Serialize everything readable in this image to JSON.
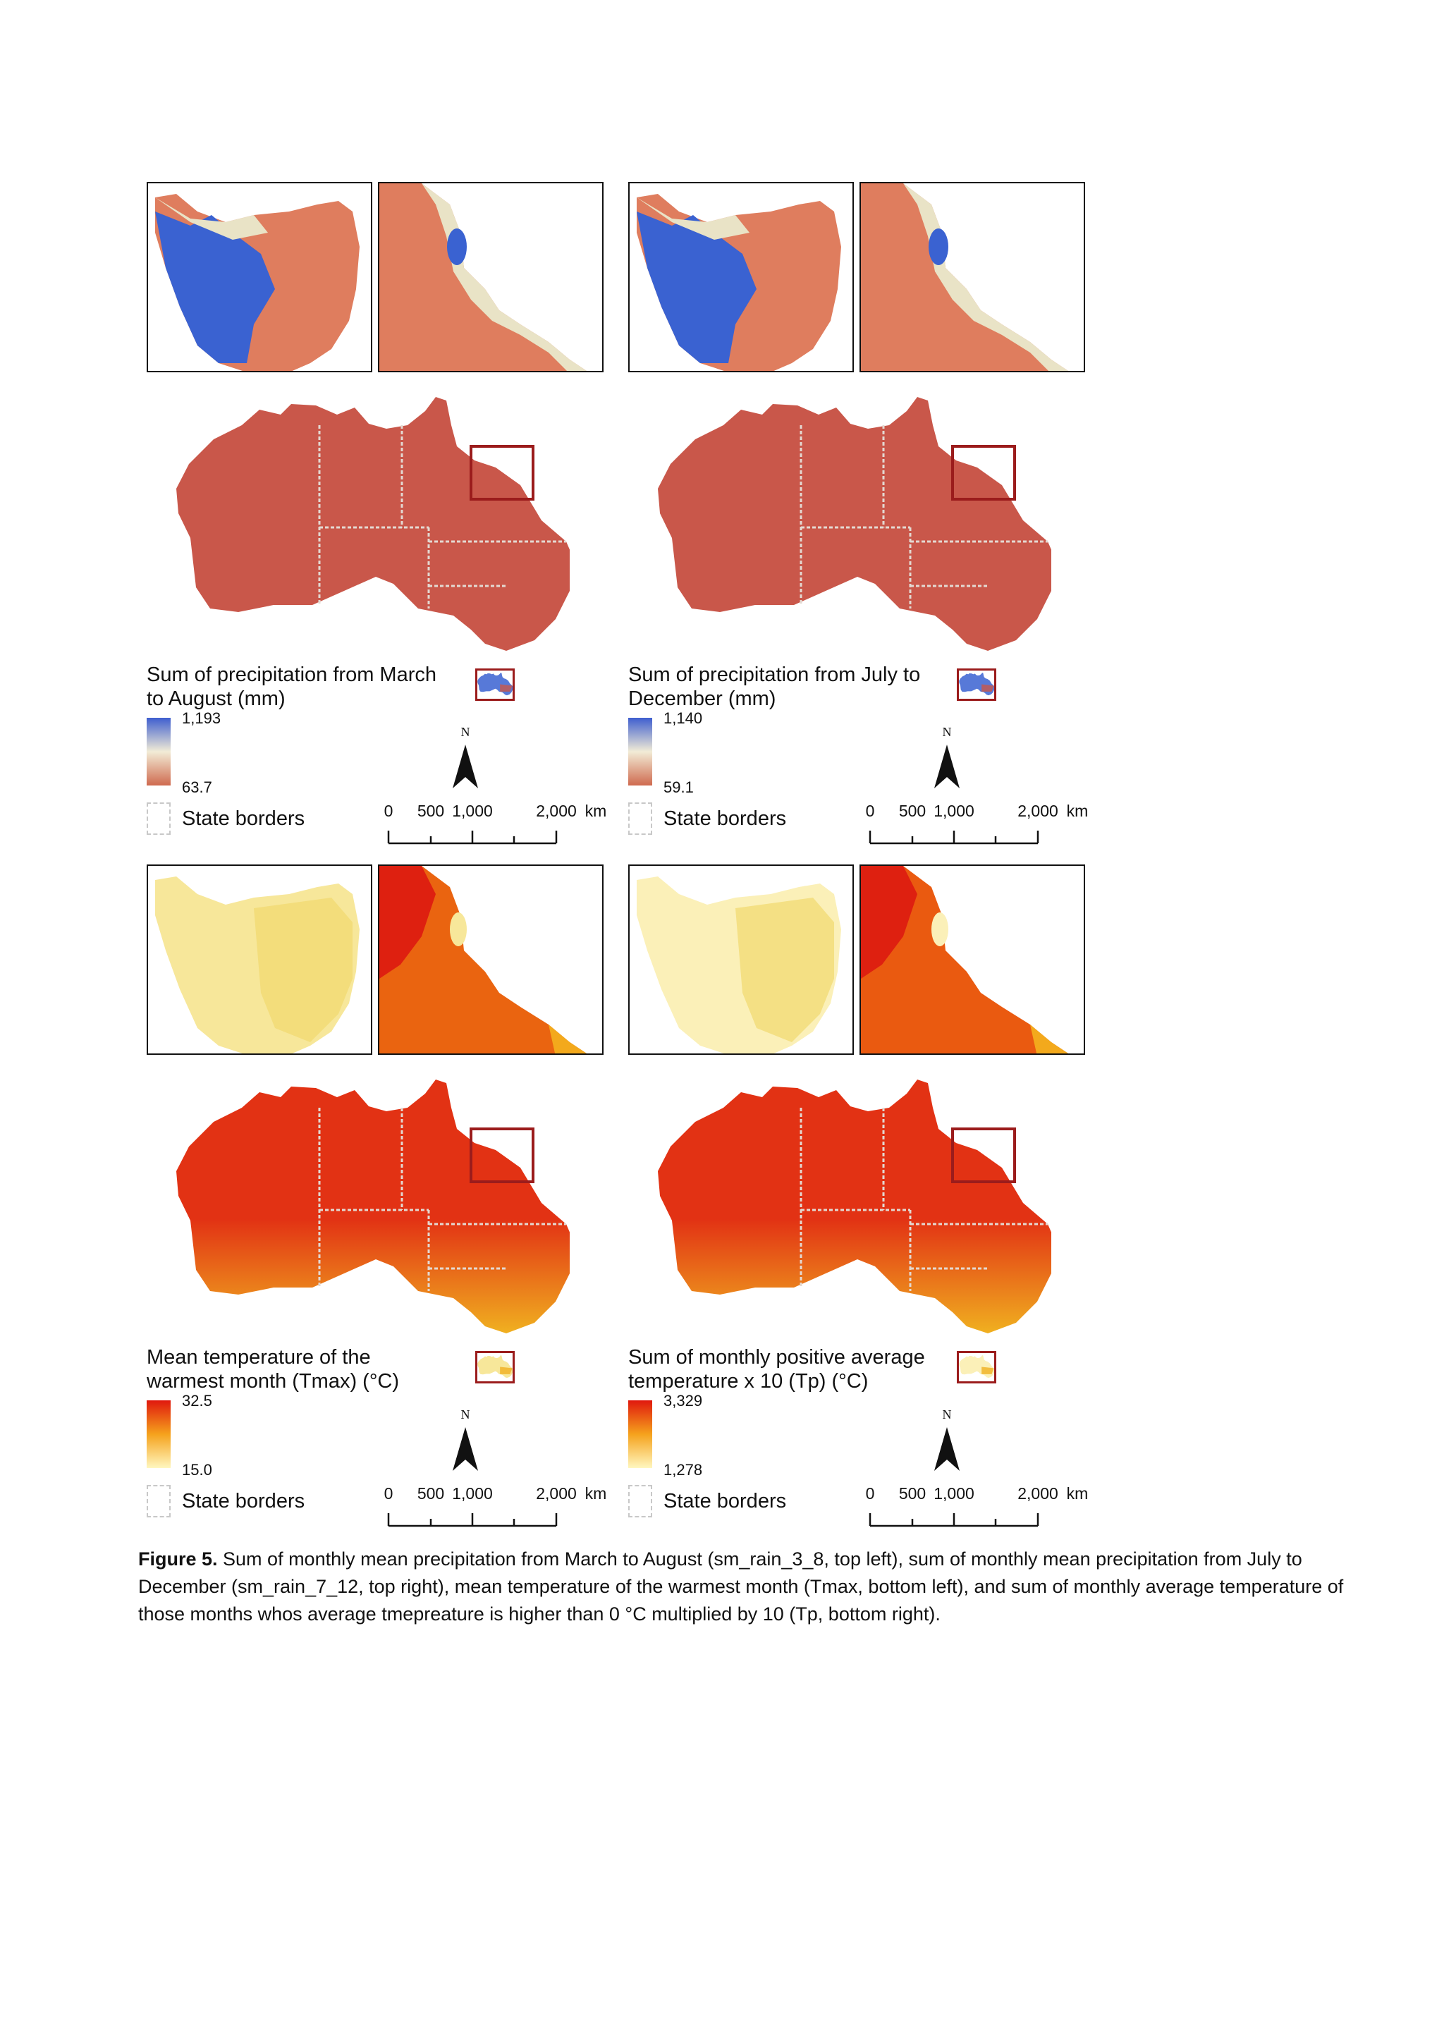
{
  "panels": [
    {
      "id": "sm_rain_3_8",
      "legend_title": "Sum of precipitation from March\nto August (mm)",
      "max_label": "1,193",
      "min_label": "63.7",
      "gradient": [
        "#3f5fcf",
        "#f2ecd6",
        "#cf6a4f"
      ],
      "colors": {
        "main": "#c9574a",
        "inset_base": "#df7d5e",
        "inset_high": "#3a62d1",
        "inset_light": "#e9e3c6"
      },
      "state_borders_label": "State borders"
    },
    {
      "id": "sm_rain_7_12",
      "legend_title": "Sum of precipitation from July to\nDecember (mm)",
      "max_label": "1,140",
      "min_label": "59.1",
      "gradient": [
        "#3f5fcf",
        "#f2ecd6",
        "#cf6a4f"
      ],
      "colors": {
        "main": "#c9574a",
        "inset_base": "#df7d5e",
        "inset_high": "#3a62d1",
        "inset_light": "#e9e3c6"
      },
      "state_borders_label": "State borders"
    },
    {
      "id": "Tmax",
      "legend_title": "Mean temperature of the\nwarmest month (Tmax) (°C)",
      "max_label": "32.5",
      "min_label": "15.0",
      "gradient": [
        "#e0180e",
        "#f5a21c",
        "#fff7bf"
      ],
      "colors": {
        "main": "#e23214",
        "south": "#f0b020",
        "inset_base": "#ea6410",
        "inset_light": "#f7e79a"
      },
      "state_borders_label": "State borders"
    },
    {
      "id": "Tp",
      "legend_title": "Sum of monthly positive average\ntemperature x 10 (Tp) (°C)",
      "max_label": "3,329",
      "min_label": "1,278",
      "gradient": [
        "#e0180e",
        "#f5a21c",
        "#fff7bf"
      ],
      "colors": {
        "main": "#e23214",
        "south": "#f0b020",
        "inset_base": "#ea5a10",
        "inset_light": "#fbf0b8"
      },
      "state_borders_label": "State borders"
    }
  ],
  "north_label": "N",
  "scale_labels": [
    "0",
    "500",
    "1,000",
    "2,000",
    "km"
  ],
  "caption": {
    "label": "Figure 5.",
    "text": " Sum of monthly mean precipitation from March to August (sm_rain_3_8, top left), sum of monthly mean precipitation from July to December (sm_rain_7_12, top right), mean temperature of the warmest month (Tmax, bottom left), and sum of monthly average temperature of those months whos average tmepreature is higher than 0 °C multiplied by 10 (Tp, bottom right)."
  }
}
